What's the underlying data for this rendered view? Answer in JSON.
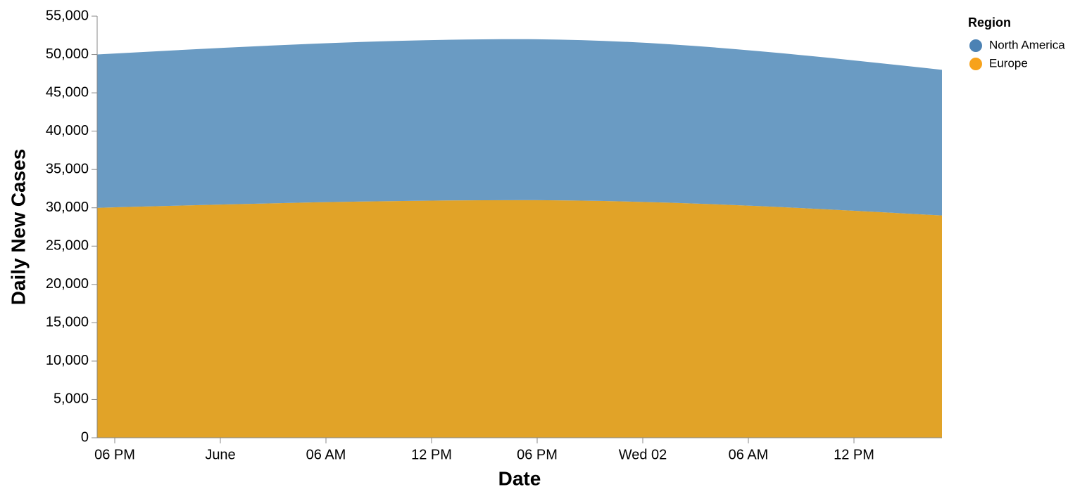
{
  "chart_data": {
    "type": "area",
    "stacked": true,
    "x_label": "Date",
    "y_label": "Daily New Cases",
    "legend_title": "Region",
    "legend_position": "right",
    "x": [
      -7,
      17,
      41
    ],
    "xlim": [
      -7,
      41
    ],
    "xticks": [
      {
        "value": -6,
        "label": "06 PM"
      },
      {
        "value": 0,
        "label": "June"
      },
      {
        "value": 6,
        "label": "06 AM"
      },
      {
        "value": 12,
        "label": "12 PM"
      },
      {
        "value": 18,
        "label": "06 PM"
      },
      {
        "value": 24,
        "label": "Wed 02"
      },
      {
        "value": 30,
        "label": "06 AM"
      },
      {
        "value": 36,
        "label": "12 PM"
      }
    ],
    "ylim": [
      0,
      55000
    ],
    "yticks": [
      0,
      {
        "value": 5000,
        "label": "5,000"
      },
      {
        "value": 10000,
        "label": "10,000"
      },
      {
        "value": 15000,
        "label": "15,000"
      },
      {
        "value": 20000,
        "label": "20,000"
      },
      {
        "value": 25000,
        "label": "25,000"
      },
      {
        "value": 30000,
        "label": "30,000"
      },
      {
        "value": 35000,
        "label": "35,000"
      },
      {
        "value": 40000,
        "label": "40,000"
      },
      {
        "value": 45000,
        "label": "45,000"
      },
      {
        "value": 50000,
        "label": "50,000"
      },
      {
        "value": 55000,
        "label": "55,000"
      }
    ],
    "grid": false,
    "series": [
      {
        "name": "North America",
        "color": "#6a9bc3",
        "legend_color": "#4c82b4",
        "values": [
          20000,
          21000,
          19000
        ]
      },
      {
        "name": "Europe",
        "color": "#e1a328",
        "legend_color": "#f7a21b",
        "values": [
          30000,
          31000,
          29000
        ]
      }
    ]
  }
}
